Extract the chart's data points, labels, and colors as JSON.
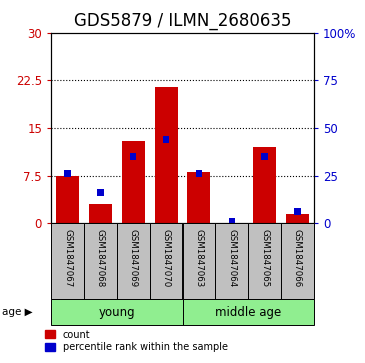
{
  "title": "GDS5879 / ILMN_2680635",
  "samples": [
    "GSM1847067",
    "GSM1847068",
    "GSM1847069",
    "GSM1847070",
    "GSM1847063",
    "GSM1847064",
    "GSM1847065",
    "GSM1847066"
  ],
  "count_values": [
    7.5,
    3.0,
    13.0,
    21.5,
    8.0,
    0.05,
    12.0,
    1.5
  ],
  "percentile_values": [
    26,
    16,
    35,
    44,
    26,
    1,
    35,
    6
  ],
  "left_ylim": [
    0,
    30
  ],
  "right_ylim": [
    0,
    100
  ],
  "left_yticks": [
    0,
    7.5,
    15,
    22.5,
    30
  ],
  "right_yticks": [
    0,
    25,
    50,
    75,
    100
  ],
  "left_yticklabels": [
    "0",
    "7.5",
    "15",
    "22.5",
    "30"
  ],
  "right_yticklabels": [
    "0",
    "25",
    "50",
    "75",
    "100%"
  ],
  "groups": [
    {
      "label": "young",
      "start": 0,
      "end": 4,
      "color": "#90EE90"
    },
    {
      "label": "middle age",
      "start": 4,
      "end": 8,
      "color": "#90EE90"
    }
  ],
  "bar_color": "#CC0000",
  "percentile_color": "#0000CC",
  "bar_width": 0.7,
  "sample_box_color": "#C0C0C0",
  "age_label": "age",
  "legend_count": "count",
  "legend_percentile": "percentile rank within the sample",
  "title_fontsize": 12,
  "axis_fontsize": 8.5,
  "tick_fontsize": 7.5
}
